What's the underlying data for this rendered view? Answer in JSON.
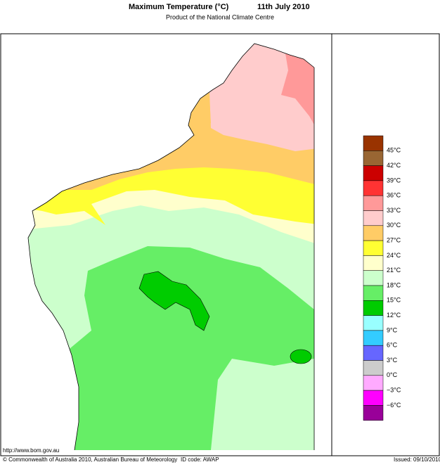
{
  "header": {
    "title": "Maximum Temperature (°C)",
    "date": "11th July 2010",
    "subtitle": "Product of the National Climate Centre"
  },
  "legend": {
    "colors": [
      "#993300",
      "#996633",
      "#cc0000",
      "#ff3333",
      "#ff9999",
      "#ffcccc",
      "#ffcc66",
      "#ffff33",
      "#ffffcc",
      "#ccffcc",
      "#66ee66",
      "#00cc00",
      "#99ffff",
      "#33ccff",
      "#6666ff",
      "#cccccc",
      "#ffaaff",
      "#ff00ff",
      "#990099"
    ],
    "labels": [
      "45°C",
      "42°C",
      "39°C",
      "36°C",
      "33°C",
      "30°C",
      "27°C",
      "24°C",
      "21°C",
      "18°C",
      "15°C",
      "12°C",
      "9°C",
      "6°C",
      "3°C",
      "0°C",
      "−3°C",
      "−6°C"
    ]
  },
  "footer": {
    "url": "http://www.bom.gov.au",
    "copyright": "© Commonwealth of Australia 2010, Australian Bureau of Meteorology",
    "id_code": "ID code: AWAP",
    "issued": "Issued: 09/10/2010"
  }
}
